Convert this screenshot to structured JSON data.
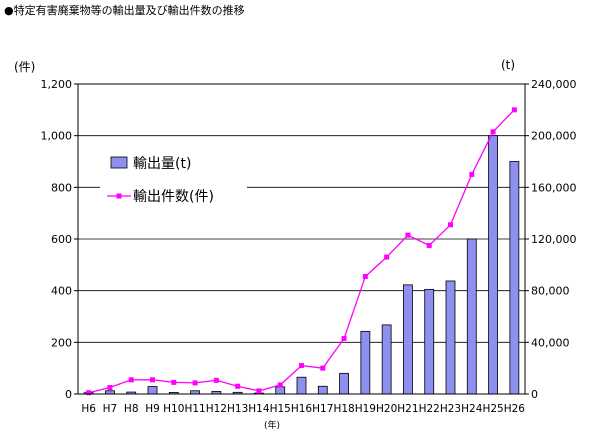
{
  "chart_data": {
    "type": "bar",
    "title": "●特定有害廃棄物等の輸出量及び輸出件数の推移",
    "xlabel": "(年)",
    "left_unit": "(件)",
    "right_unit": "(t)",
    "categories": [
      "H6",
      "H7",
      "H8",
      "H9",
      "H10",
      "H11",
      "H12",
      "H13",
      "H14",
      "H15",
      "H16",
      "H17",
      "H18",
      "H19",
      "H20",
      "H21",
      "H22",
      "H23",
      "H24",
      "H25",
      "H26"
    ],
    "series": [
      {
        "name": "輸出量(t)",
        "type": "bar",
        "axis": "right",
        "color": "#8f8fef",
        "values": [
          1000,
          2500,
          1500,
          5800,
          1200,
          2500,
          2000,
          1300,
          700,
          5500,
          13000,
          6000,
          16000,
          48500,
          53500,
          84500,
          81000,
          87500,
          120000,
          200000,
          180000
        ]
      },
      {
        "name": "輸出件数(件)",
        "type": "line",
        "axis": "left",
        "color": "#ff00ff",
        "values": [
          5,
          25,
          55,
          55,
          45,
          43,
          53,
          30,
          12,
          35,
          110,
          100,
          215,
          455,
          530,
          615,
          575,
          655,
          850,
          1015,
          1100
        ]
      }
    ],
    "left_axis": {
      "ylim": [
        0,
        1200
      ],
      "ticks": [
        "0",
        "200",
        "400",
        "600",
        "800",
        "1,000",
        "1,200"
      ],
      "tick_values": [
        0,
        200,
        400,
        600,
        800,
        1000,
        1200
      ]
    },
    "right_axis": {
      "ylim": [
        0,
        240000
      ],
      "ticks": [
        "0",
        "40,000",
        "80,000",
        "120,000",
        "160,000",
        "200,000",
        "240,000"
      ],
      "tick_values": [
        0,
        40000,
        80000,
        120000,
        160000,
        200000,
        240000
      ]
    },
    "grid": true,
    "legend": {
      "placement": "upper-left inside plot"
    }
  },
  "colors": {
    "bar_fill": "#8f8fef",
    "line": "#ff00ff",
    "grid": "#000000",
    "background": "#ffffff"
  }
}
